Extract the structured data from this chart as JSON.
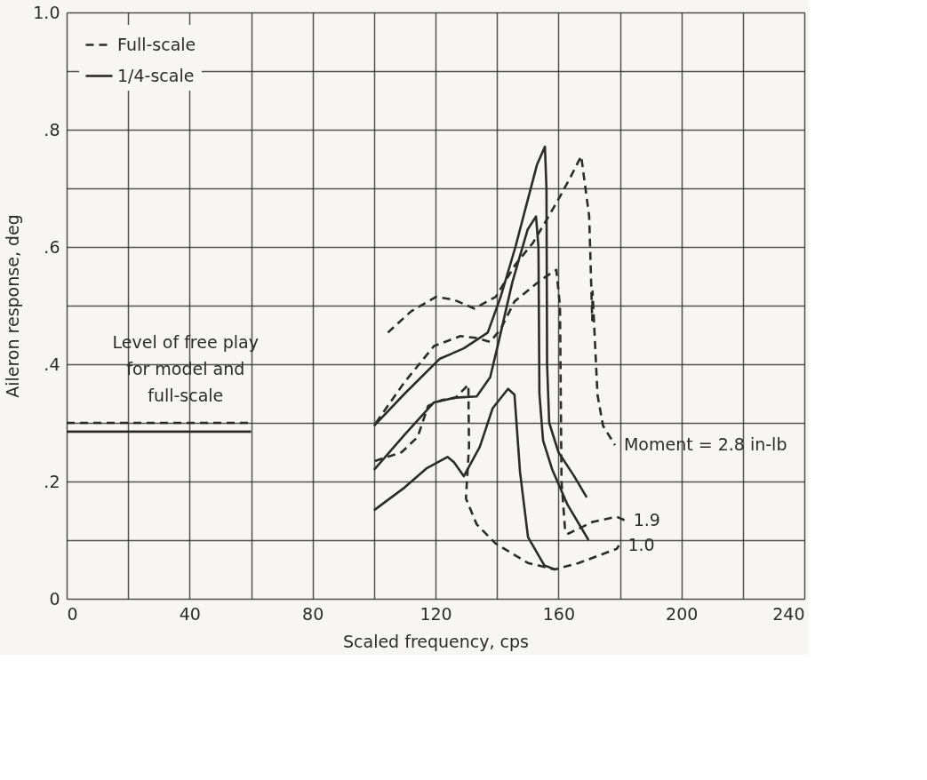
{
  "chart_data": {
    "type": "line",
    "xlabel": "Scaled frequency, cps",
    "ylabel": "Aileron response, deg",
    "xlim": [
      0,
      240
    ],
    "ylim": [
      0,
      1.0
    ],
    "xticks": [
      0,
      {
        "value": 20,
        "label": null
      },
      40,
      {
        "value": 60,
        "label": null
      },
      80,
      {
        "value": 100,
        "label": null
      },
      120,
      {
        "value": 140,
        "label": null
      },
      160,
      {
        "value": 180,
        "label": null
      },
      200,
      {
        "value": 220,
        "label": null
      },
      240
    ],
    "yticks": [
      0,
      {
        "value": 0.1,
        "label": null
      },
      {
        "value": 0.2,
        "label": ".2"
      },
      {
        "value": 0.3,
        "label": null
      },
      {
        "value": 0.4,
        "label": ".4"
      },
      {
        "value": 0.5,
        "label": null
      },
      {
        "value": 0.6,
        "label": ".6"
      },
      {
        "value": 0.7,
        "label": null
      },
      {
        "value": 0.8,
        "label": ".8"
      },
      {
        "value": 0.9,
        "label": null
      },
      {
        "value": 1.0,
        "label": "1.0"
      }
    ],
    "grid": true,
    "legend": "top left",
    "series": [
      {
        "name": "Full-scale",
        "color": "#2b2b2b",
        "line_style": "dashed",
        "x": [
          104.5,
          112,
          120.2,
          126,
          132.6,
          139.6,
          146,
          151.7,
          156,
          160.6,
          164,
          167.4,
          170,
          171,
          171.1,
          172.7,
          174.5,
          178.4
        ],
        "values": [
          0.454,
          0.49,
          0.515,
          0.51,
          0.495,
          0.515,
          0.57,
          0.607,
          0.645,
          0.687,
          0.72,
          0.755,
          0.652,
          0.475,
          0.524,
          0.348,
          0.295,
          0.262
        ]
      },
      {
        "name": "1/4-scale",
        "color": "#2b2b2b",
        "line_style": "solid",
        "x": [
          100,
          110,
          121.3,
          129.2,
          137,
          141.2,
          146,
          150,
          153,
          155.6,
          156.1,
          156.3,
          157,
          160,
          165,
          169.2
        ],
        "values": [
          0.295,
          0.35,
          0.409,
          0.427,
          0.454,
          0.515,
          0.6,
          0.68,
          0.74,
          0.771,
          0.7,
          0.4,
          0.3,
          0.25,
          0.21,
          0.173
        ]
      },
      {
        "color": "#2b2b2b",
        "line_style": "dashed",
        "x": [
          100.6,
          110,
          119.5,
          128.1,
          133,
          137.8,
          141.2,
          145.7,
          152.7,
          156,
          159.3,
          160.5,
          161,
          162.2,
          163.2,
          171.1,
          178.9,
          181.5
        ],
        "values": [
          0.3,
          0.37,
          0.431,
          0.448,
          0.445,
          0.438,
          0.46,
          0.507,
          0.537,
          0.55,
          0.561,
          0.5,
          0.2,
          0.114,
          0.111,
          0.131,
          0.14,
          0.134
        ]
      },
      {
        "color": "#2b2b2b",
        "line_style": "solid",
        "x": [
          100,
          110,
          119.5,
          126.5,
          133.4,
          137.8,
          140.4,
          145,
          150,
          152.7,
          153.5,
          153.8,
          155,
          158,
          163,
          169.8
        ],
        "values": [
          0.22,
          0.28,
          0.335,
          0.343,
          0.345,
          0.378,
          0.435,
          0.54,
          0.63,
          0.652,
          0.6,
          0.35,
          0.27,
          0.22,
          0.16,
          0.1
        ]
      },
      {
        "color": "#2b2b2b",
        "line_style": "dashed",
        "x": [
          100.3,
          109,
          114.2,
          117.6,
          122.1,
          126.5,
          130.7,
          130.9,
          129.9,
          133.4,
          139.6,
          150.1,
          158.8,
          166.6,
          178.9,
          179.7
        ],
        "values": [
          0.235,
          0.25,
          0.276,
          0.329,
          0.339,
          0.343,
          0.365,
          0.259,
          0.171,
          0.127,
          0.094,
          0.061,
          0.05,
          0.061,
          0.085,
          0.091
        ]
      },
      {
        "color": "#2b2b2b",
        "line_style": "solid",
        "x": [
          100,
          110,
          117,
          123.9,
          126,
          129.2,
          134.4,
          138.6,
          143.6,
          145.7,
          147.5,
          150.1,
          155.4,
          158.8
        ],
        "values": [
          0.151,
          0.19,
          0.222,
          0.242,
          0.233,
          0.209,
          0.259,
          0.325,
          0.358,
          0.348,
          0.216,
          0.105,
          0.057,
          0.05
        ]
      },
      {
        "color": "#2b2b2b",
        "line_style": "dashed",
        "x": [
          0,
          60
        ],
        "values": [
          0.3,
          0.3
        ]
      },
      {
        "color": "#2b2b2b",
        "line_style": "solid",
        "x": [
          0,
          60
        ],
        "values": [
          0.285,
          0.285
        ]
      }
    ],
    "annotations": [
      {
        "text": "Level of free play\nfor model and\nfull-scale",
        "x": 30,
        "y": 0.3
      },
      {
        "text": "Moment = 2.8 in-lb",
        "x": 178.4,
        "y": 0.262
      },
      {
        "text": "1.9",
        "x": 181.5,
        "y": 0.134
      },
      {
        "text": "1.0",
        "x": 179.7,
        "y": 0.091
      }
    ]
  }
}
